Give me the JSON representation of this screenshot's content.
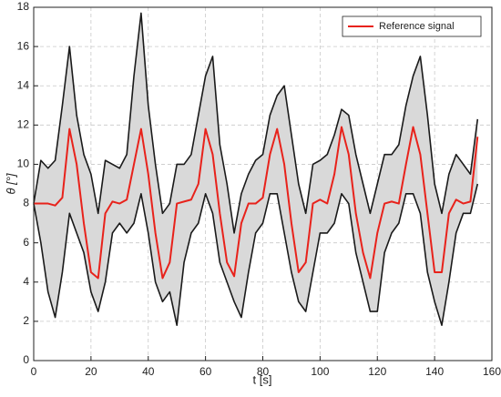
{
  "chart_data": {
    "type": "line",
    "xlabel": "t [s]",
    "ylabel": "θ [°]",
    "x": [
      0,
      2.5,
      5,
      7.5,
      10,
      12.5,
      15,
      17.5,
      20,
      22.5,
      25,
      27.5,
      30,
      32.5,
      35,
      37.5,
      40,
      42.5,
      45,
      47.5,
      50,
      52.5,
      55,
      57.5,
      60,
      62.5,
      65,
      67.5,
      70,
      72.5,
      75,
      77.5,
      80,
      82.5,
      85,
      87.5,
      90,
      92.5,
      95,
      97.5,
      100,
      102.5,
      105,
      107.5,
      110,
      112.5,
      115,
      117.5,
      120,
      122.5,
      125,
      127.5,
      130,
      132.5,
      135,
      137.5,
      140,
      142.5,
      145,
      147.5,
      150,
      152.5,
      155
    ],
    "series": [
      {
        "name": "Reference signal",
        "color": "#e8221b",
        "values": [
          8,
          8,
          8,
          7.9,
          8.3,
          11.8,
          10,
          7,
          4.5,
          4.2,
          7.5,
          8.1,
          8,
          8.2,
          10,
          11.8,
          9.5,
          6.5,
          4.2,
          5,
          8,
          8.1,
          8.2,
          9,
          11.8,
          10.5,
          7.5,
          5,
          4.3,
          7,
          8,
          8,
          8.3,
          10.5,
          11.8,
          10,
          7,
          4.5,
          5,
          8,
          8.2,
          8,
          9.5,
          11.9,
          10.5,
          7.5,
          5.5,
          4.2,
          6.5,
          8,
          8.1,
          8,
          10,
          11.9,
          10.5,
          7.5,
          4.5,
          4.5,
          7.5,
          8.2,
          8,
          8.1,
          11.4
        ]
      }
    ],
    "band": {
      "color": "#1a1a1a",
      "fill": "#d9d9d9",
      "upper": [
        8,
        10.2,
        9.8,
        10.2,
        13,
        16,
        12.5,
        10.5,
        9.5,
        7.5,
        10.2,
        10,
        9.8,
        10.5,
        14.5,
        17.7,
        13,
        10,
        7.5,
        8,
        10,
        10,
        10.5,
        12.5,
        14.5,
        15.5,
        11,
        9,
        6.5,
        8.5,
        9.5,
        10.2,
        10.5,
        12.5,
        13.5,
        14,
        11.5,
        9,
        7.5,
        10,
        10.2,
        10.5,
        11.5,
        12.8,
        12.5,
        10.5,
        9,
        7.5,
        9,
        10.5,
        10.5,
        11,
        13,
        14.5,
        15.5,
        12.5,
        9,
        7.5,
        9.5,
        10.5,
        10,
        9.5,
        12.3
      ],
      "lower": [
        8,
        6,
        3.5,
        2.2,
        4.5,
        7.5,
        6.5,
        5.5,
        3.5,
        2.5,
        4,
        6.5,
        7,
        6.5,
        7,
        8.5,
        6.5,
        4,
        3,
        3.5,
        1.8,
        5,
        6.5,
        7,
        8.5,
        7.5,
        5,
        4,
        3,
        2.2,
        4.5,
        6.5,
        7,
        8.5,
        8.5,
        6.5,
        4.5,
        3,
        2.5,
        4.5,
        6.5,
        6.5,
        7,
        8.5,
        8,
        5.5,
        4,
        2.5,
        2.5,
        5.5,
        6.5,
        7,
        8.5,
        8.5,
        7.5,
        4.5,
        3,
        1.8,
        4,
        6.5,
        7.5,
        7.5,
        9
      ]
    },
    "xlim": [
      0,
      160
    ],
    "xticks": [
      0,
      20,
      40,
      60,
      80,
      100,
      120,
      140,
      160
    ],
    "ylim": [
      0,
      18
    ],
    "yticks": [
      0,
      2,
      4,
      6,
      8,
      10,
      12,
      14,
      16,
      18
    ],
    "grid": true,
    "legend": "upper right"
  }
}
